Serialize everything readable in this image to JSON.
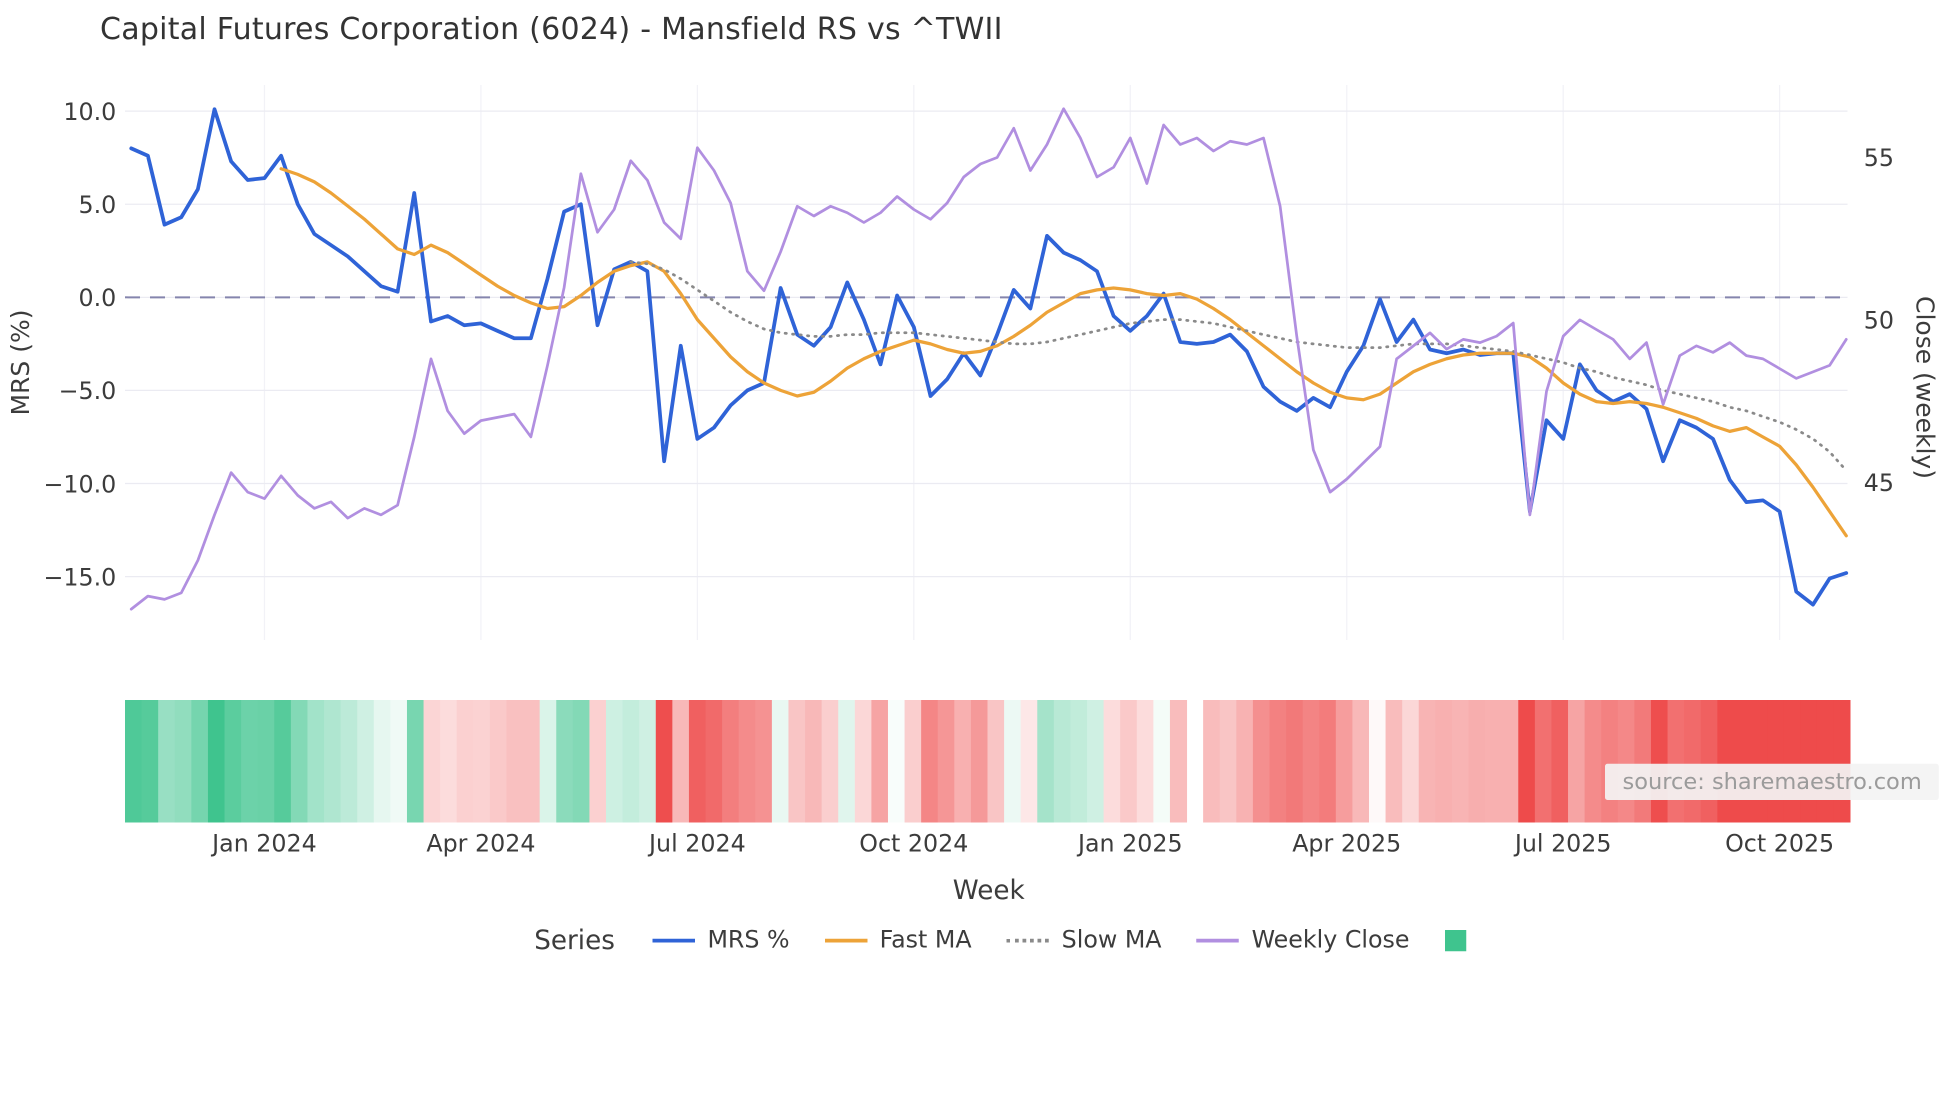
{
  "title": "Capital Futures Corporation (6024) - Mansfield RS vs ^TWII",
  "source_note": "source: sharemaestro.com",
  "axes": {
    "left": {
      "label": "MRS (%)",
      "ticks": [
        {
          "value": 10,
          "label": "10.0"
        },
        {
          "value": 5,
          "label": "5.0"
        },
        {
          "value": 0,
          "label": "0.0"
        },
        {
          "value": -5,
          "label": "−5.0"
        },
        {
          "value": -10,
          "label": "−10.0"
        },
        {
          "value": -15,
          "label": "−15.0"
        }
      ]
    },
    "right": {
      "label": "Close (weekly)",
      "ticks": [
        {
          "value": 55,
          "label": "55"
        },
        {
          "value": 50,
          "label": "50"
        },
        {
          "value": 45,
          "label": "45"
        }
      ]
    },
    "x": {
      "label": "Week",
      "ticks": [
        {
          "week": 8,
          "label": "Jan 2024"
        },
        {
          "week": 21,
          "label": "Apr 2024"
        },
        {
          "week": 34,
          "label": "Jul 2024"
        },
        {
          "week": 47,
          "label": "Oct 2024"
        },
        {
          "week": 60,
          "label": "Jan 2025"
        },
        {
          "week": 73,
          "label": "Apr 2025"
        },
        {
          "week": 86,
          "label": "Jul 2025"
        },
        {
          "week": 99,
          "label": "Oct 2025"
        }
      ]
    }
  },
  "legend": {
    "title": "Series",
    "items": [
      {
        "label": "MRS %",
        "swatch": "line",
        "color": "#2f63d7"
      },
      {
        "label": "Fast MA",
        "swatch": "line",
        "color": "#eda338"
      },
      {
        "label": "Slow MA",
        "swatch": "dotted",
        "color": "#8a8a8a"
      },
      {
        "label": "Weekly Close",
        "swatch": "line",
        "color": "#b18fe0"
      },
      {
        "label": "",
        "swatch": "square",
        "color": "#3fc48e"
      }
    ]
  },
  "colors": {
    "background": "#ffffff",
    "grid": "#ebebf2",
    "zero_line": "#8585ad",
    "text": "#3c3c3c"
  },
  "chart_data": {
    "type": "line",
    "title": "Capital Futures Corporation (6024) - Mansfield RS vs ^TWII",
    "xlabel": "Week",
    "ylabel_left": "MRS (%)",
    "ylabel_right": "Close (weekly)",
    "x_unit": "week_index",
    "n_weeks": 104,
    "left_axis_range": [
      -18.4,
      11.4
    ],
    "right_axis_range": [
      40.15,
      57.23
    ],
    "zero_reference_line": 0,
    "grid": true,
    "legend_position": "bottom",
    "series": [
      {
        "name": "MRS %",
        "axis": "left",
        "color": "#2f63d7",
        "style": "solid",
        "width": 3,
        "values": [
          8.0,
          7.6,
          3.9,
          4.3,
          5.8,
          10.1,
          7.3,
          6.3,
          6.4,
          7.6,
          5.0,
          3.4,
          2.8,
          2.2,
          1.4,
          0.6,
          0.3,
          5.6,
          -1.3,
          -1.0,
          -1.5,
          -1.4,
          -1.8,
          -2.2,
          -2.2,
          1.0,
          4.6,
          5.0,
          -1.5,
          1.5,
          1.9,
          1.4,
          -8.8,
          -2.6,
          -7.6,
          -7.0,
          -5.8,
          -5.0,
          -4.6,
          0.5,
          -2.0,
          -2.6,
          -1.6,
          0.8,
          -1.2,
          -3.6,
          0.1,
          -1.6,
          -5.3,
          -4.4,
          -3.0,
          -4.2,
          -2.0,
          0.4,
          -0.6,
          3.3,
          2.4,
          2.0,
          1.4,
          -1.0,
          -1.8,
          -1.0,
          0.2,
          -2.4,
          -2.5,
          -2.4,
          -2.0,
          -2.9,
          -4.8,
          -5.6,
          -6.1,
          -5.4,
          -5.9,
          -4.0,
          -2.6,
          -0.1,
          -2.4,
          -1.2,
          -2.8,
          -3.0,
          -2.8,
          -3.1,
          -3.0,
          -3.0,
          -11.5,
          -6.6,
          -7.6,
          -3.6,
          -5.0,
          -5.6,
          -5.2,
          -6.0,
          -8.8,
          -6.6,
          -7.0,
          -7.6,
          -9.8,
          -11.0,
          -10.9,
          -11.5,
          -15.8,
          -16.5,
          -15.1,
          -14.8
        ]
      },
      {
        "name": "Fast MA",
        "axis": "left",
        "color": "#eda338",
        "style": "solid",
        "width": 2.6,
        "values": [
          null,
          null,
          null,
          null,
          null,
          null,
          null,
          null,
          null,
          6.9,
          6.6,
          6.2,
          5.6,
          4.9,
          4.2,
          3.4,
          2.6,
          2.3,
          2.8,
          2.4,
          1.8,
          1.2,
          0.6,
          0.1,
          -0.3,
          -0.6,
          -0.5,
          0.1,
          0.8,
          1.4,
          1.7,
          1.9,
          1.4,
          0.2,
          -1.2,
          -2.2,
          -3.2,
          -4.0,
          -4.6,
          -5.0,
          -5.3,
          -5.1,
          -4.5,
          -3.8,
          -3.3,
          -2.9,
          -2.6,
          -2.3,
          -2.5,
          -2.8,
          -3.0,
          -2.9,
          -2.6,
          -2.1,
          -1.5,
          -0.8,
          -0.3,
          0.2,
          0.4,
          0.5,
          0.4,
          0.2,
          0.1,
          0.2,
          -0.1,
          -0.6,
          -1.2,
          -1.9,
          -2.6,
          -3.3,
          -4.0,
          -4.6,
          -5.1,
          -5.4,
          -5.5,
          -5.2,
          -4.6,
          -4.0,
          -3.6,
          -3.3,
          -3.1,
          -3.0,
          -3.0,
          -3.0,
          -3.2,
          -3.8,
          -4.6,
          -5.2,
          -5.6,
          -5.7,
          -5.6,
          -5.7,
          -5.9,
          -6.2,
          -6.5,
          -6.9,
          -7.2,
          -7.0,
          -7.5,
          -8.0,
          -9.0,
          -10.2,
          -11.5,
          -12.8
        ]
      },
      {
        "name": "Slow MA",
        "axis": "left",
        "color": "#8a8a8a",
        "style": "dotted",
        "width": 2.2,
        "values": [
          null,
          null,
          null,
          null,
          null,
          null,
          null,
          null,
          null,
          null,
          null,
          null,
          null,
          null,
          null,
          null,
          null,
          null,
          null,
          null,
          null,
          null,
          null,
          null,
          null,
          null,
          null,
          null,
          null,
          null,
          1.9,
          1.8,
          1.5,
          1.0,
          0.4,
          -0.2,
          -0.8,
          -1.3,
          -1.7,
          -1.9,
          -2.0,
          -2.1,
          -2.1,
          -2.0,
          -2.0,
          -1.9,
          -1.9,
          -1.9,
          -2.0,
          -2.1,
          -2.2,
          -2.3,
          -2.4,
          -2.5,
          -2.5,
          -2.4,
          -2.2,
          -2.0,
          -1.8,
          -1.6,
          -1.4,
          -1.3,
          -1.2,
          -1.2,
          -1.3,
          -1.4,
          -1.6,
          -1.8,
          -2.0,
          -2.2,
          -2.4,
          -2.5,
          -2.6,
          -2.7,
          -2.7,
          -2.7,
          -2.6,
          -2.5,
          -2.5,
          -2.5,
          -2.6,
          -2.7,
          -2.8,
          -2.9,
          -3.1,
          -3.3,
          -3.5,
          -3.8,
          -4.0,
          -4.3,
          -4.5,
          -4.7,
          -5.0,
          -5.2,
          -5.4,
          -5.6,
          -5.9,
          -6.1,
          -6.4,
          -6.7,
          -7.1,
          -7.6,
          -8.3,
          -9.3
        ]
      },
      {
        "name": "Weekly Close",
        "axis": "right",
        "color": "#b18fe0",
        "style": "solid",
        "width": 2.2,
        "values": [
          41.1,
          41.5,
          41.4,
          41.6,
          42.6,
          44.0,
          45.3,
          44.7,
          44.5,
          45.2,
          44.6,
          44.2,
          44.4,
          43.9,
          44.2,
          44.0,
          44.3,
          46.4,
          48.8,
          47.2,
          46.5,
          46.9,
          47.0,
          47.1,
          46.4,
          48.6,
          51.0,
          54.5,
          52.7,
          53.4,
          54.9,
          54.3,
          53.0,
          52.5,
          55.3,
          54.6,
          53.6,
          51.5,
          50.9,
          52.1,
          53.5,
          53.2,
          53.5,
          53.3,
          53.0,
          53.3,
          53.8,
          53.4,
          53.1,
          53.6,
          54.4,
          54.8,
          55.0,
          55.9,
          54.6,
          55.4,
          56.5,
          55.6,
          54.4,
          54.7,
          55.6,
          54.2,
          56.0,
          55.4,
          55.6,
          55.2,
          55.5,
          55.4,
          55.6,
          53.5,
          49.5,
          46.0,
          44.7,
          45.1,
          45.6,
          46.1,
          48.8,
          49.2,
          49.6,
          49.1,
          49.4,
          49.3,
          49.5,
          49.9,
          44.0,
          47.8,
          49.5,
          50.0,
          49.7,
          49.4,
          48.8,
          49.3,
          47.4,
          48.9,
          49.2,
          49.0,
          49.3,
          48.9,
          48.8,
          48.5,
          48.2,
          48.4,
          48.6,
          49.4
        ]
      }
    ],
    "heatmap": {
      "derived_from": "MRS %",
      "gap_week": 64,
      "scale_max": 9,
      "positive_color": "#3fc48e",
      "negative_color": "#ee4b4b"
    }
  }
}
